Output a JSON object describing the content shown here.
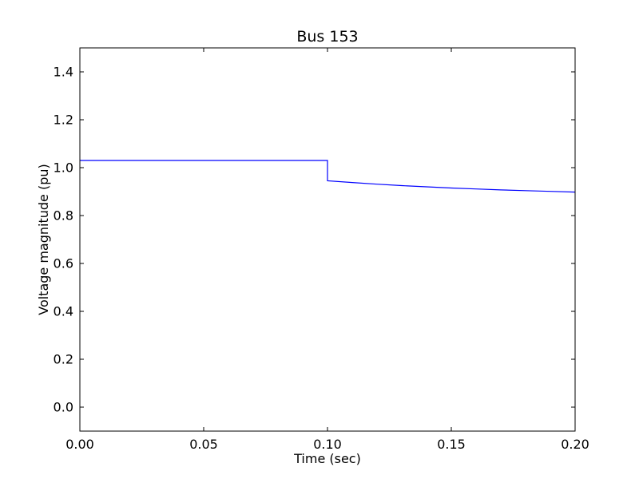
{
  "chart_data": {
    "type": "line",
    "title": "Bus 153",
    "xlabel": "Time (sec)",
    "ylabel": "Voltage magnitude (pu)",
    "xlim": [
      0.0,
      0.2
    ],
    "ylim": [
      -0.1,
      1.5
    ],
    "x_ticks": [
      0.0,
      0.05,
      0.1,
      0.15,
      0.2
    ],
    "x_tick_labels": [
      "0.00",
      "0.05",
      "0.10",
      "0.15",
      "0.20"
    ],
    "y_ticks": [
      0.0,
      0.2,
      0.4,
      0.6,
      0.8,
      1.0,
      1.2,
      1.4
    ],
    "y_tick_labels": [
      "0.0",
      "0.2",
      "0.4",
      "0.6",
      "0.8",
      "1.0",
      "1.2",
      "1.4"
    ],
    "grid": false,
    "legend": "none",
    "series": [
      {
        "color": "#0000ff",
        "x": [
          0.0,
          0.1,
          0.1,
          0.11,
          0.12,
          0.13,
          0.14,
          0.15,
          0.16,
          0.17,
          0.18,
          0.19,
          0.2
        ],
        "y": [
          1.03,
          1.03,
          0.945,
          0.938,
          0.931,
          0.925,
          0.92,
          0.915,
          0.911,
          0.907,
          0.904,
          0.901,
          0.898
        ]
      }
    ]
  }
}
